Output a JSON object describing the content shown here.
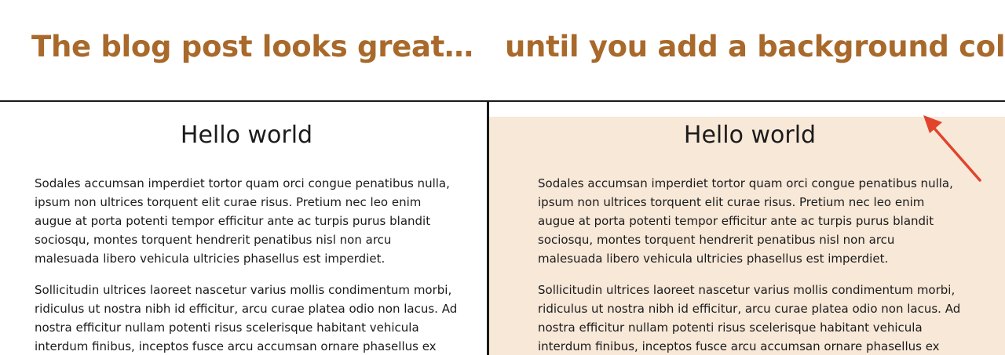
{
  "captions": {
    "left": "The blog post looks great…",
    "right": "until you add a background color"
  },
  "colors": {
    "caption": "#a8692b",
    "divider": "#1a1a1a",
    "tinted_background": "#f8e8d8",
    "arrow": "#e0442c"
  },
  "article": {
    "title": "Hello world",
    "paragraph_1": "Sodales accumsan imperdiet tortor quam orci congue penatibus nulla, ipsum non ultrices torquent elit curae risus. Pretium nec leo enim augue at porta potenti tempor efficitur ante ac turpis purus blandit sociosqu, montes torquent hendrerit penatibus nisl non arcu malesuada libero vehicula ultricies phasellus est imperdiet.",
    "paragraph_2": "Sollicitudin ultrices laoreet nascetur varius mollis condimentum morbi, ridiculus ut nostra nibh id efficitur, arcu curae platea odio non lacus. Ad nostra efficitur nullam potenti risus scelerisque habitant vehicula interdum finibus, inceptos fusce arcu accumsan ornare phasellus ex"
  },
  "icons": {
    "annotation": "arrow-icon"
  }
}
